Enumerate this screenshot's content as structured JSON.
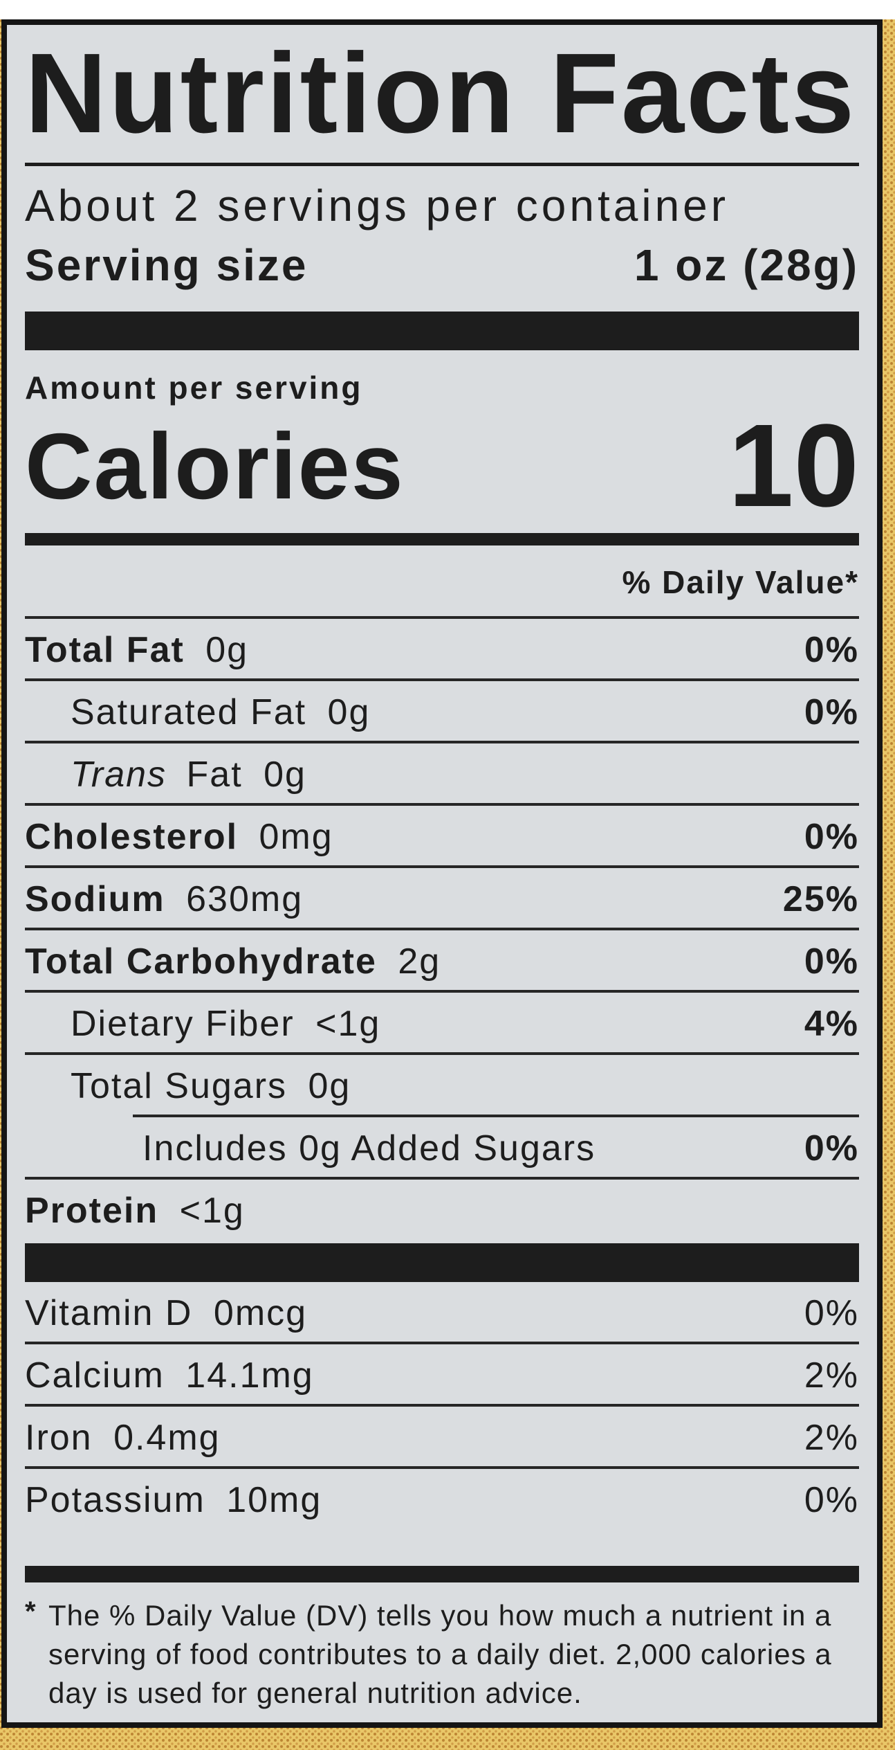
{
  "colors": {
    "packaging_yellow": "#e9c768",
    "packaging_dot": "#bc8433",
    "label_background": "#dadde0",
    "ink": "#1d1d1d"
  },
  "nutrition_label": {
    "title": "Nutrition Facts",
    "servings_per_container": "About 2 servings per container",
    "serving_size": {
      "label": "Serving size",
      "value": "1 oz (28g)"
    },
    "amount_per_serving": "Amount per serving",
    "calories": {
      "label": "Calories",
      "value": "10"
    },
    "daily_value_header": "% Daily Value*",
    "nutrients": [
      {
        "name": "Total Fat",
        "amount": "0g",
        "daily_value": "0%"
      },
      {
        "name": "Saturated Fat",
        "amount": "0g",
        "daily_value": "0%"
      },
      {
        "name_italic": "Trans",
        "name": "Fat",
        "amount": "0g",
        "daily_value": ""
      },
      {
        "name": "Cholesterol",
        "amount": "0mg",
        "daily_value": "0%"
      },
      {
        "name": "Sodium",
        "amount": "630mg",
        "daily_value": "25%"
      },
      {
        "name": "Total Carbohydrate",
        "amount": "2g",
        "daily_value": "0%"
      },
      {
        "name": "Dietary Fiber",
        "amount": "<1g",
        "daily_value": "4%"
      },
      {
        "name": "Total Sugars",
        "amount": "0g",
        "daily_value": ""
      },
      {
        "name": "Includes 0g Added Sugars",
        "amount": "",
        "daily_value": "0%"
      },
      {
        "name": "Protein",
        "amount": "<1g",
        "daily_value": ""
      }
    ],
    "micronutrients": [
      {
        "name": "Vitamin D",
        "amount": "0mcg",
        "daily_value": "0%"
      },
      {
        "name": "Calcium",
        "amount": "14.1mg",
        "daily_value": "2%"
      },
      {
        "name": "Iron",
        "amount": "0.4mg",
        "daily_value": "2%"
      },
      {
        "name": "Potassium",
        "amount": "10mg",
        "daily_value": "0%"
      }
    ],
    "footnote": {
      "marker": "*",
      "text": "The % Daily Value (DV) tells you how much a nutrient in a serving of food contributes to a daily diet. 2,000 calories a day is used for general nutrition advice."
    }
  }
}
